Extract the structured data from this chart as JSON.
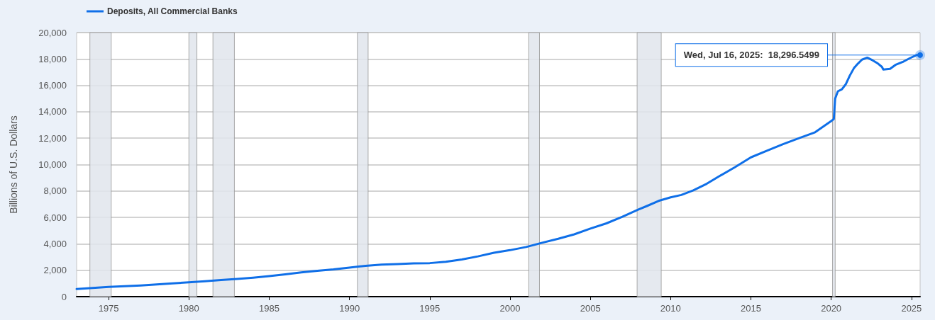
{
  "chart_data": {
    "type": "line",
    "ylabel": "Billions of U.S. Dollars",
    "x": [
      "1973-01-03",
      "1974-01",
      "1975-01",
      "1976-01",
      "1977-01",
      "1978-01",
      "1979-01",
      "1980-01",
      "1981-01",
      "1982-01",
      "1983-01",
      "1984-01",
      "1985-01",
      "1986-01",
      "1987-01",
      "1988-01",
      "1989-01",
      "1990-01",
      "1991-01",
      "1992-01",
      "1993-01",
      "1994-01",
      "1995-01",
      "1996-01",
      "1997-01",
      "1998-01",
      "1999-01",
      "2000-01",
      "2001-01",
      "2002-01",
      "2003-01",
      "2004-01",
      "2005-01",
      "2006-01",
      "2007-01",
      "2008-01",
      "2008-07",
      "2009-04",
      "2010-01",
      "2010-09",
      "2011-06",
      "2012-04",
      "2013-01",
      "2014-01",
      "2015-01",
      "2016-01",
      "2017-01",
      "2018-01",
      "2019-01",
      "2020-01",
      "2020-03",
      "2020-04",
      "2020-06",
      "2020-09",
      "2020-12",
      "2021-03",
      "2021-06",
      "2021-09",
      "2021-12",
      "2022-04",
      "2022-08",
      "2022-12",
      "2023-03",
      "2023-04",
      "2023-09",
      "2024-01",
      "2024-07",
      "2024-12",
      "2025-05",
      "2025-07-16"
    ],
    "series": [
      {
        "name": "Deposits, All Commercial Banks",
        "color": "#0f6fe8",
        "values": [
          580,
          660,
          740,
          790,
          850,
          930,
          1010,
          1080,
          1170,
          1260,
          1340,
          1440,
          1560,
          1690,
          1840,
          1960,
          2060,
          2200,
          2330,
          2430,
          2470,
          2520,
          2540,
          2640,
          2810,
          3050,
          3320,
          3520,
          3760,
          4080,
          4380,
          4720,
          5150,
          5550,
          6050,
          6600,
          6850,
          7250,
          7520,
          7700,
          8050,
          8550,
          9100,
          9800,
          10550,
          11050,
          11550,
          12000,
          12450,
          13300,
          13450,
          15000,
          15550,
          15700,
          16100,
          16750,
          17300,
          17650,
          17950,
          18100,
          17900,
          17650,
          17400,
          17200,
          17250,
          17550,
          17800,
          18070,
          18300,
          18296.5499
        ]
      }
    ],
    "xlim": [
      "1973-01-03",
      "2025-07-16"
    ],
    "ylim": [
      0,
      20000
    ],
    "xticks": [
      "1975",
      "1980",
      "1985",
      "1990",
      "1995",
      "2000",
      "2005",
      "2010",
      "2015",
      "2020",
      "2025"
    ],
    "yticks": [
      0,
      {
        "value": 2000,
        "label": "2,000"
      },
      {
        "value": 4000,
        "label": "4,000"
      },
      {
        "value": 6000,
        "label": "6,000"
      },
      {
        "value": 8000,
        "label": "8,000"
      },
      {
        "value": 10000,
        "label": "10,000"
      },
      {
        "value": 12000,
        "label": "12,000"
      },
      {
        "value": 14000,
        "label": "14,000"
      },
      {
        "value": 16000,
        "label": "16,000"
      },
      {
        "value": 18000,
        "label": "18,000"
      },
      {
        "value": 20000,
        "label": "20,000"
      }
    ],
    "grid": "y",
    "legend": "top left",
    "bands": [
      {
        "axis": "x",
        "from": "1973-11",
        "to": "1975-03",
        "color": "#e1e5ec"
      },
      {
        "axis": "x",
        "from": "1980-01",
        "to": "1980-07",
        "color": "#e1e5ec"
      },
      {
        "axis": "x",
        "from": "1981-07",
        "to": "1982-11",
        "color": "#e1e5ec"
      },
      {
        "axis": "x",
        "from": "1990-07",
        "to": "1991-03",
        "color": "#e1e5ec"
      },
      {
        "axis": "x",
        "from": "2001-03",
        "to": "2001-11",
        "color": "#e1e5ec"
      },
      {
        "axis": "x",
        "from": "2007-12",
        "to": "2009-06",
        "color": "#e1e5ec"
      },
      {
        "axis": "x",
        "from": "2020-02",
        "to": "2020-04",
        "color": "#e1e5ec"
      }
    ],
    "annotations": [
      {
        "text": "Wed, Jul 16, 2025:  18,296.5499",
        "x": "2025-07-16",
        "y": 18296.5499
      }
    ]
  }
}
